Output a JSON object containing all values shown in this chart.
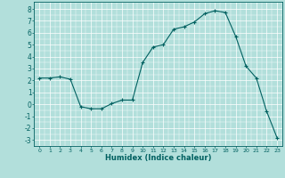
{
  "x": [
    0,
    1,
    2,
    3,
    4,
    5,
    6,
    7,
    8,
    9,
    10,
    11,
    12,
    13,
    14,
    15,
    16,
    17,
    18,
    19,
    20,
    21,
    22,
    23
  ],
  "y": [
    2.2,
    2.2,
    2.3,
    2.1,
    -0.2,
    -0.38,
    -0.38,
    0.05,
    0.35,
    0.35,
    3.5,
    4.8,
    5.0,
    6.3,
    6.5,
    6.9,
    7.6,
    7.85,
    7.7,
    5.7,
    3.2,
    2.2,
    -0.6,
    -2.8
  ],
  "line_color": "#006060",
  "marker": "+",
  "marker_size": 3,
  "marker_lw": 0.8,
  "bg_color": "#b2dfdb",
  "grid_color": "#ffffff",
  "xlabel": "Humidex (Indice chaleur)",
  "ylabel_ticks": [
    8,
    7,
    6,
    5,
    4,
    3,
    2,
    1,
    0,
    -1,
    -2,
    -3
  ],
  "ylim": [
    -3.5,
    8.6
  ],
  "xlim": [
    -0.5,
    23.5
  ],
  "xtick_labels": [
    "0",
    "1",
    "2",
    "3",
    "4",
    "5",
    "6",
    "7",
    "8",
    "9",
    "10",
    "11",
    "12",
    "13",
    "14",
    "15",
    "16",
    "17",
    "18",
    "19",
    "20",
    "21",
    "22",
    "23"
  ],
  "figsize": [
    3.2,
    2.0
  ],
  "dpi": 100,
  "minor_grid_n": 2
}
